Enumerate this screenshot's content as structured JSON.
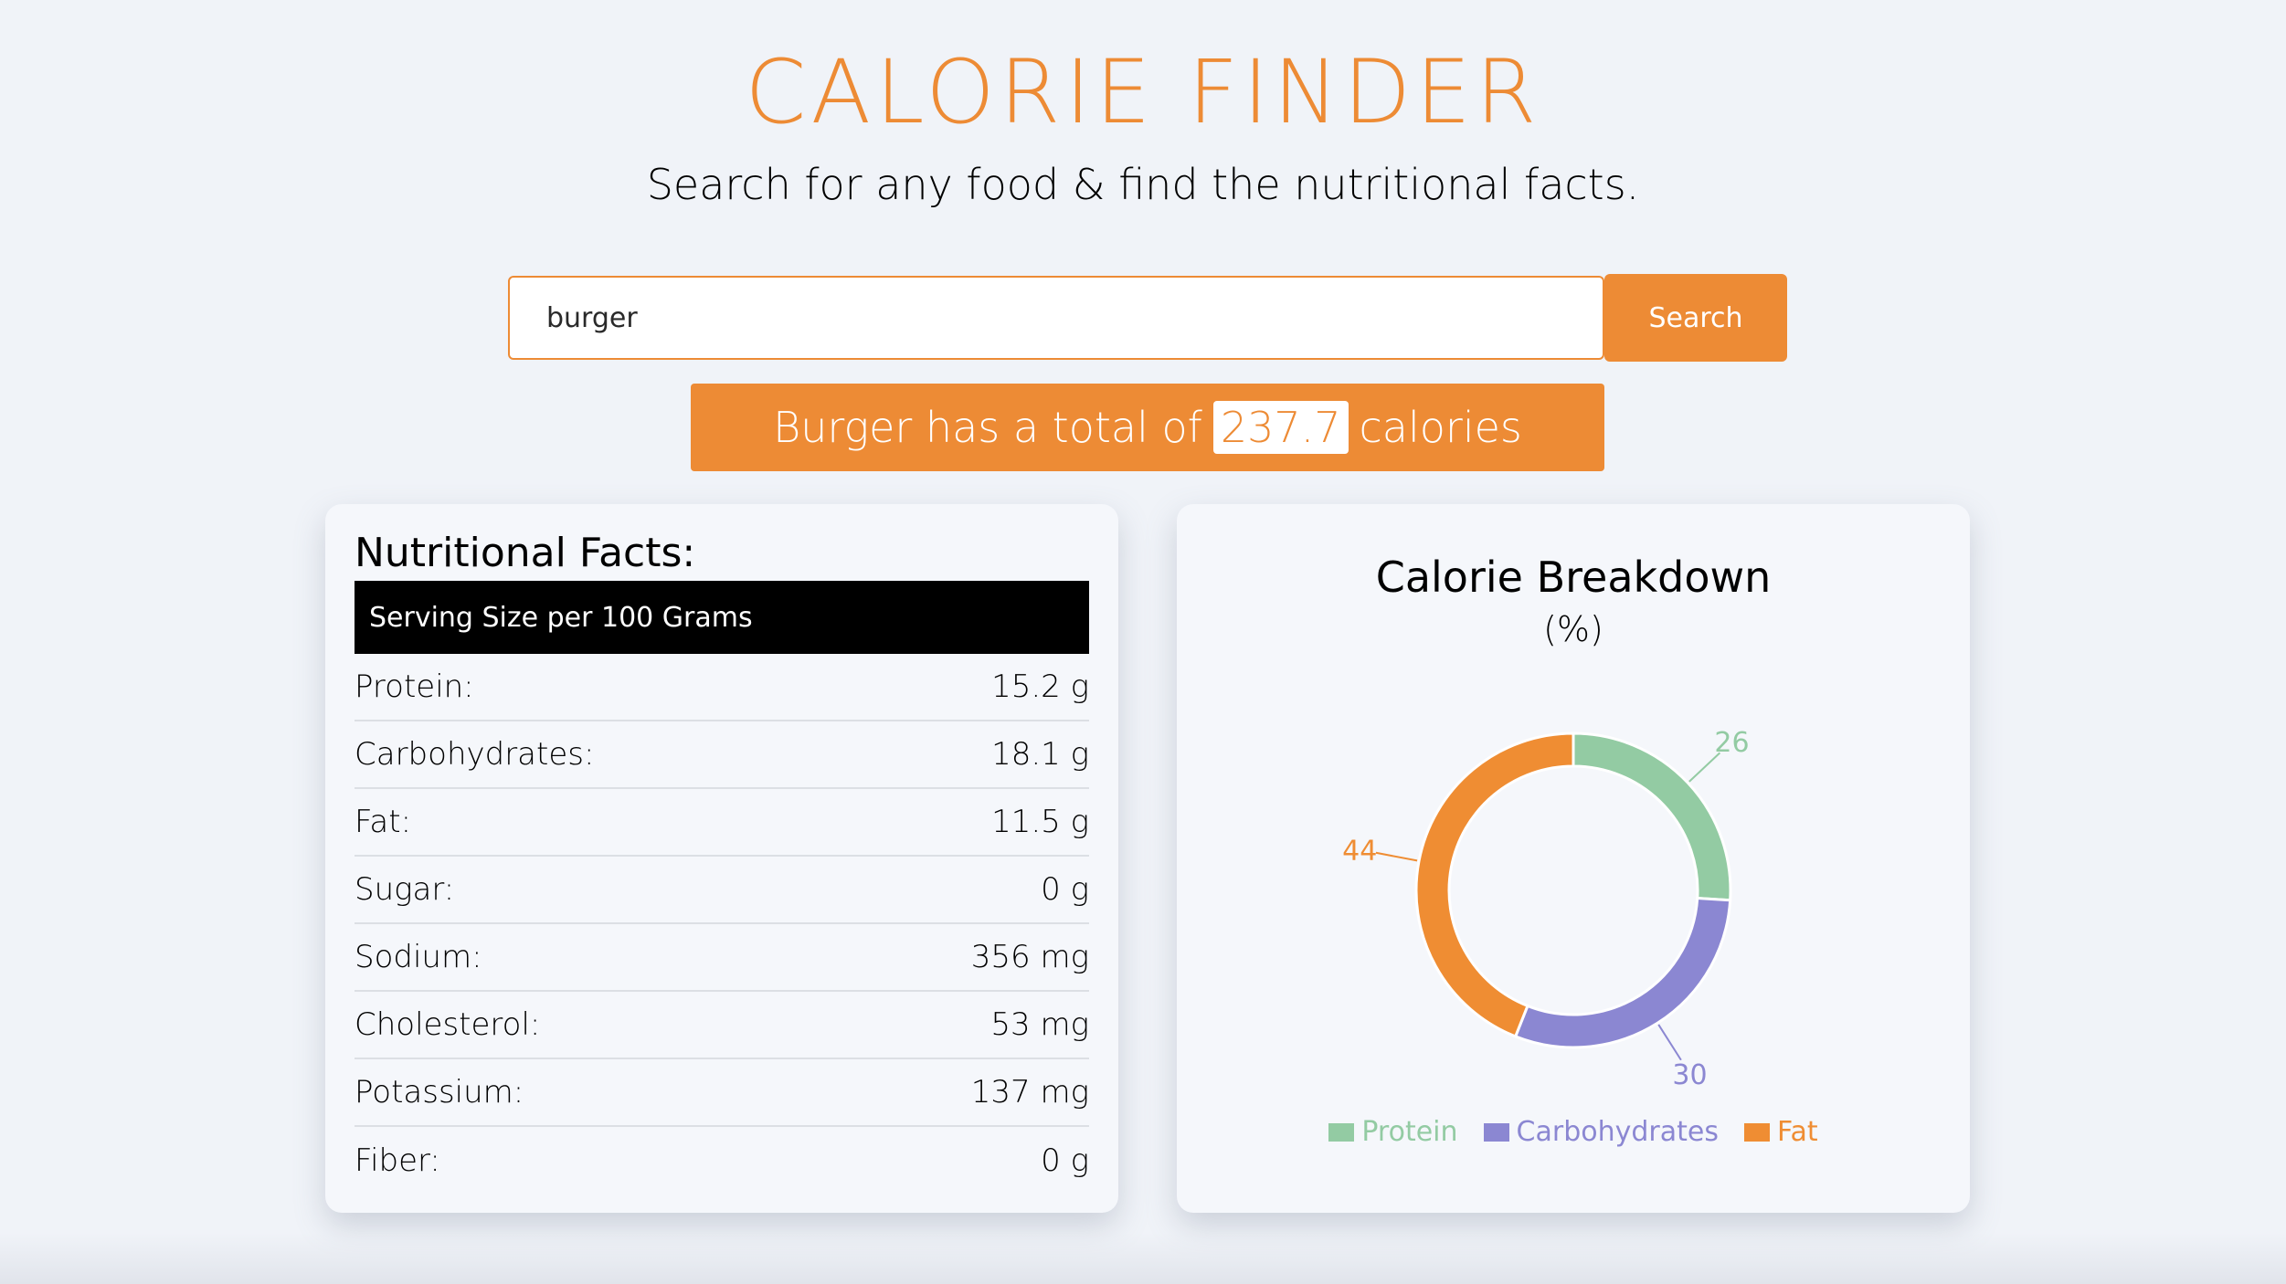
{
  "colors": {
    "accent": "#ed8b35",
    "protein": "#93cba3",
    "carbohydrates": "#8b87d2",
    "fat": "#ef8d33"
  },
  "header": {
    "title": "CALORIE FINDER",
    "subtitle": "Search for any food & find the nutritional facts."
  },
  "search": {
    "value": "burger",
    "button_label": "Search"
  },
  "result": {
    "prefix": "Burger has a total of",
    "calories": "237.7",
    "suffix": "calories"
  },
  "facts": {
    "title": "Nutritional Facts:",
    "serving": "Serving Size per 100 Grams",
    "rows": [
      {
        "label": "Protein:",
        "value": "15.2 g"
      },
      {
        "label": "Carbohydrates:",
        "value": "18.1 g"
      },
      {
        "label": "Fat:",
        "value": "11.5 g"
      },
      {
        "label": "Sugar:",
        "value": "0 g"
      },
      {
        "label": "Sodium:",
        "value": "356 mg"
      },
      {
        "label": "Cholesterol:",
        "value": "53 mg"
      },
      {
        "label": "Potassium:",
        "value": "137 mg"
      },
      {
        "label": "Fiber:",
        "value": "0 g"
      }
    ]
  },
  "chart_data": {
    "type": "pie",
    "variant": "donut",
    "title": "Calorie Breakdown",
    "subtitle": "(%)",
    "categories": [
      "Protein",
      "Carbohydrates",
      "Fat"
    ],
    "values": [
      26,
      30,
      44
    ],
    "legend_position": "bottom",
    "start": "top",
    "direction": "clockwise"
  }
}
